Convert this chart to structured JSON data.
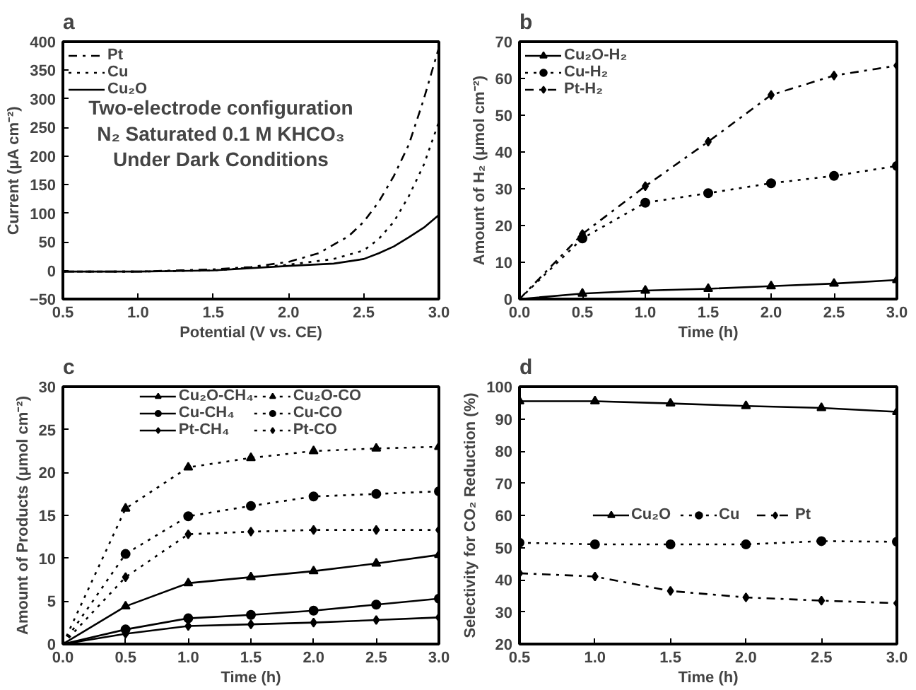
{
  "chart_data": [
    {
      "type": "line",
      "title": "a",
      "xlabel": "Potential (V vs. CE)",
      "ylabel": "Current (μA cm⁻²)",
      "xlim": [
        0.5,
        3.0
      ],
      "ylim": [
        -50,
        400
      ],
      "xticks": [
        0.5,
        {
          "value": 1,
          "label": "1.0"
        },
        1.5,
        {
          "value": 2,
          "label": "2.0"
        },
        2.5,
        {
          "value": 3,
          "label": "3.0"
        }
      ],
      "yticks": [
        -50,
        0,
        50,
        100,
        150,
        200,
        250,
        300,
        350,
        400
      ],
      "grid": false,
      "legend": "top left",
      "marker": "none",
      "annotations": [
        "Two-electrode configuration",
        "N₂ Saturated 0.1 M KHCO₃",
        "Under Dark Conditions"
      ],
      "series": [
        {
          "name": "Pt",
          "color": "#000000",
          "line_style": "dashdot",
          "x": [
            0.5,
            1.0,
            1.5,
            1.75,
            2.0,
            2.2,
            2.4,
            2.5,
            2.6,
            2.7,
            2.8,
            2.9,
            3.0
          ],
          "values": [
            -2,
            -2,
            2,
            6,
            15,
            30,
            60,
            85,
            120,
            165,
            220,
            300,
            390
          ]
        },
        {
          "name": "Cu",
          "color": "#000000",
          "line_style": "dotted",
          "x": [
            0.5,
            1.0,
            1.5,
            2.0,
            2.3,
            2.5,
            2.6,
            2.7,
            2.8,
            2.9,
            3.0
          ],
          "values": [
            -2,
            -2,
            0,
            10,
            20,
            35,
            55,
            85,
            130,
            185,
            260
          ]
        },
        {
          "name": "Cu₂O",
          "color": "#000000",
          "line_style": "solid",
          "x": [
            0.5,
            1.0,
            1.5,
            2.0,
            2.3,
            2.5,
            2.6,
            2.7,
            2.8,
            2.9,
            3.0
          ],
          "values": [
            -2,
            -2,
            0,
            8,
            12,
            20,
            30,
            42,
            58,
            75,
            97
          ]
        }
      ]
    },
    {
      "type": "line",
      "title": "b",
      "xlabel": "Time (h)",
      "ylabel": "Amount of H₂ (μmol cm⁻²)",
      "x": [
        0,
        0.5,
        1,
        1.5,
        2,
        2.5,
        3
      ],
      "xlim": [
        0,
        3
      ],
      "ylim": [
        0,
        70
      ],
      "xticks": [
        {
          "value": 0,
          "label": "0.0"
        },
        0.5,
        {
          "value": 1,
          "label": "1.0"
        },
        1.5,
        {
          "value": 2,
          "label": "2.0"
        },
        2.5,
        {
          "value": 3,
          "label": "3.0"
        }
      ],
      "yticks": [
        0,
        10,
        20,
        30,
        40,
        50,
        60,
        70
      ],
      "grid": false,
      "legend": "top left",
      "series": [
        {
          "name": "Cu₂O-H₂",
          "color": "#000000",
          "line_style": "solid",
          "marker": "triangle",
          "values": [
            0,
            1.5,
            2.3,
            2.8,
            3.5,
            4.2,
            5.2
          ]
        },
        {
          "name": "Cu-H₂",
          "color": "#000000",
          "line_style": "dotted",
          "marker": "circle",
          "values": [
            0,
            16.5,
            26.2,
            28.8,
            31.5,
            33.5,
            36.2
          ]
        },
        {
          "name": "Pt-H₂",
          "color": "#000000",
          "line_style": "dashdot",
          "marker": "diamond",
          "values": [
            0,
            17.7,
            30.7,
            42.8,
            55.5,
            60.8,
            63.5
          ]
        }
      ]
    },
    {
      "type": "line",
      "title": "c",
      "xlabel": "Time (h)",
      "ylabel": "Amount of Products (μmol cm⁻²)",
      "x": [
        0,
        0.5,
        1,
        1.5,
        2,
        2.5,
        3
      ],
      "xlim": [
        0,
        3
      ],
      "ylim": [
        0,
        30
      ],
      "xticks": [
        {
          "value": 0,
          "label": "0.0"
        },
        0.5,
        {
          "value": 1,
          "label": "1.0"
        },
        1.5,
        {
          "value": 2,
          "label": "2.0"
        },
        2.5,
        {
          "value": 3,
          "label": "3.0"
        }
      ],
      "yticks": [
        0,
        5,
        10,
        15,
        20,
        25,
        30
      ],
      "grid": false,
      "legend": "top",
      "series": [
        {
          "name": "Cu₂O-CH₄",
          "color": "#000000",
          "line_style": "solid",
          "marker": "triangle",
          "values": [
            0,
            4.4,
            7.1,
            7.8,
            8.5,
            9.4,
            10.4
          ]
        },
        {
          "name": "Cu₂O-CO",
          "color": "#000000",
          "line_style": "dotted",
          "marker": "triangle",
          "values": [
            0,
            15.8,
            20.6,
            21.7,
            22.5,
            22.8,
            23.0
          ]
        },
        {
          "name": "Cu-CH₄",
          "color": "#000000",
          "line_style": "solid",
          "marker": "circle",
          "values": [
            0,
            1.7,
            3.0,
            3.4,
            3.9,
            4.6,
            5.3
          ]
        },
        {
          "name": "Cu-CO",
          "color": "#000000",
          "line_style": "dotted",
          "marker": "circle",
          "values": [
            0,
            10.5,
            14.9,
            16.1,
            17.2,
            17.5,
            17.8
          ]
        },
        {
          "name": "Pt-CH₄",
          "color": "#000000",
          "line_style": "solid",
          "marker": "diamond",
          "values": [
            0,
            1.2,
            2.1,
            2.3,
            2.5,
            2.8,
            3.1
          ]
        },
        {
          "name": "Pt-CO",
          "color": "#000000",
          "line_style": "dotted",
          "marker": "diamond",
          "values": [
            0,
            7.8,
            12.8,
            13.1,
            13.3,
            13.3,
            13.3
          ]
        }
      ]
    },
    {
      "type": "line",
      "title": "d",
      "xlabel": "Time (h)",
      "ylabel": "Selectivity for CO₂ Reduction (%)",
      "x": [
        0.5,
        1,
        1.5,
        2,
        2.5,
        3
      ],
      "xlim": [
        0.5,
        3
      ],
      "ylim": [
        20,
        100
      ],
      "xticks": [
        0.5,
        {
          "value": 1,
          "label": "1.0"
        },
        1.5,
        {
          "value": 2,
          "label": "2.0"
        },
        2.5,
        {
          "value": 3,
          "label": "3.0"
        }
      ],
      "yticks": [
        20,
        30,
        40,
        50,
        60,
        70,
        80,
        90,
        100
      ],
      "grid": false,
      "legend": "center",
      "series": [
        {
          "name": "Cu₂O",
          "color": "#000000",
          "line_style": "solid",
          "marker": "triangle",
          "values": [
            95.5,
            95.5,
            94.8,
            94.0,
            93.4,
            92.2
          ]
        },
        {
          "name": "Cu",
          "color": "#000000",
          "line_style": "dotted",
          "marker": "circle",
          "values": [
            51.5,
            51,
            51,
            51,
            52,
            51.8
          ]
        },
        {
          "name": "Pt",
          "color": "#000000",
          "line_style": "dashdot",
          "marker": "diamond",
          "values": [
            42,
            41,
            36.5,
            34.5,
            33.5,
            32.7
          ]
        }
      ]
    }
  ]
}
